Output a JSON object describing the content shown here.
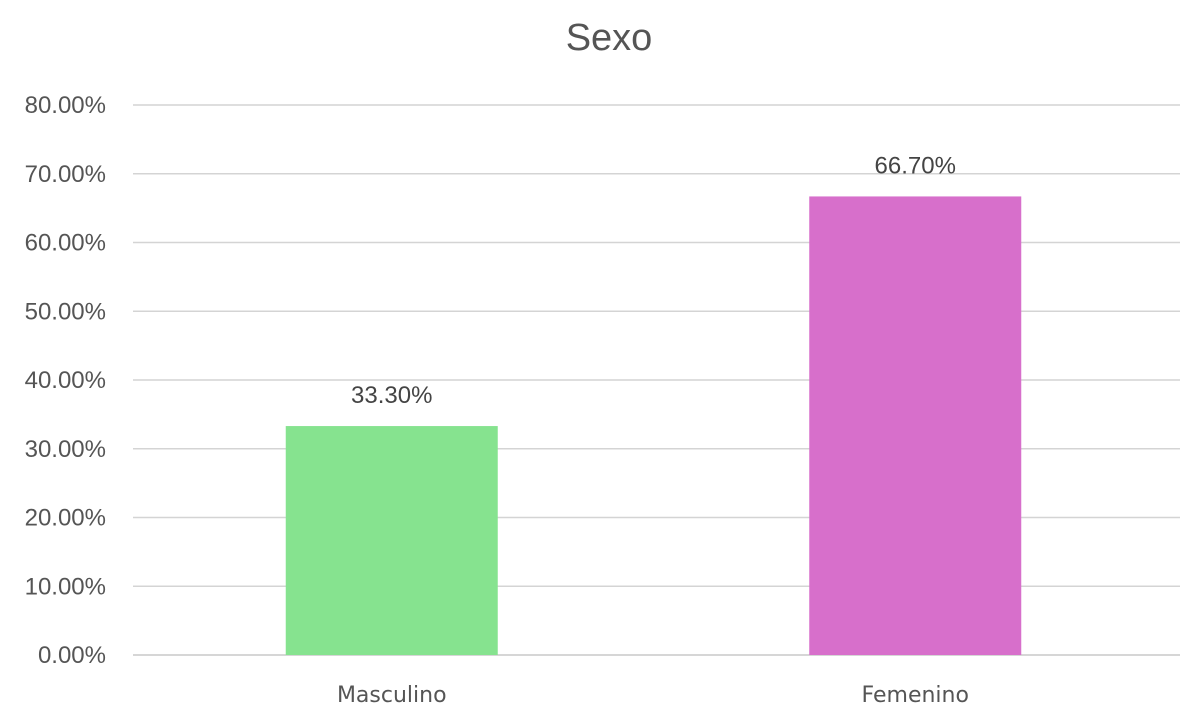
{
  "chart_data": {
    "type": "bar",
    "title": "Sexo",
    "categories": [
      "Masculino",
      "Femenino"
    ],
    "values": [
      33.3,
      66.7
    ],
    "value_labels": [
      "33.30%",
      "66.70%"
    ],
    "bar_colors": [
      "#86e38f",
      "#d76fcb"
    ],
    "ylim": [
      0,
      80
    ],
    "yticks": [
      0,
      10,
      20,
      30,
      40,
      50,
      60,
      70,
      80
    ],
    "ytick_labels": [
      "0.00%",
      "10.00%",
      "20.00%",
      "30.00%",
      "40.00%",
      "50.00%",
      "60.00%",
      "70.00%",
      "80.00%"
    ],
    "xlabel": "",
    "ylabel": "",
    "grid": true,
    "legend": "none"
  }
}
